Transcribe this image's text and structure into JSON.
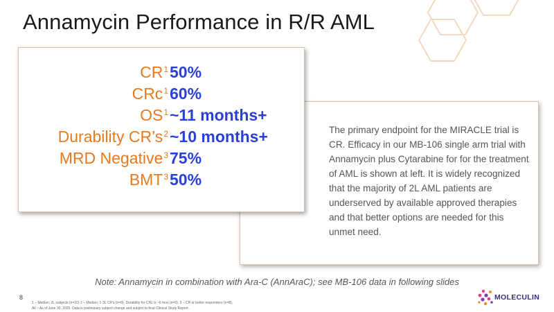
{
  "slide": {
    "title": "Annamycin Performance in R/R AML",
    "metrics": [
      {
        "label": "CR",
        "sup": "1",
        "value": "50%"
      },
      {
        "label": "CRc",
        "sup": "1",
        "value": "60%"
      },
      {
        "label": "OS",
        "sup": "1",
        "value": "~11 months+"
      },
      {
        "label": "Durability CR’s",
        "sup": "2",
        "value": "~10 months+"
      },
      {
        "label": "MRD Negative",
        "sup": "3",
        "value": "75%"
      },
      {
        "label": "BMT",
        "sup": "3",
        "value": "50%"
      }
    ],
    "body_text": "The primary endpoint for the MIRACLE trial is CR. Efficacy in our MB-106 single arm trial with Annamycin plus Cytarabine for for the treatment of AML is shown at left. It is widely recognized that the majority of 2L AML patients are underserved by available approved therapies and that better options are needed for this unmet need.",
    "note": "Note: Annamycin in combination with Ara-C (AnnAraC); see MB-106 data in following slides",
    "page_number": "8",
    "footnote_line1": "1 – Median; 2L subjects (n=10) 2 – Median; 1-3L CR’s (n=8). Durability for CRc is ~6 mos (n=9). 3 – CR or better responders (n=8).",
    "footnote_line2": "All – As of June 30, 2025. Data is preliminary subject change and subject to final Clinical Study Report.",
    "logo_text": "MOLECULIN"
  },
  "colors": {
    "label_orange": "#e8791f",
    "value_blue": "#2a3fd6",
    "hex_outline": "#f2d9bf",
    "box_border": "#d8c2ac"
  }
}
